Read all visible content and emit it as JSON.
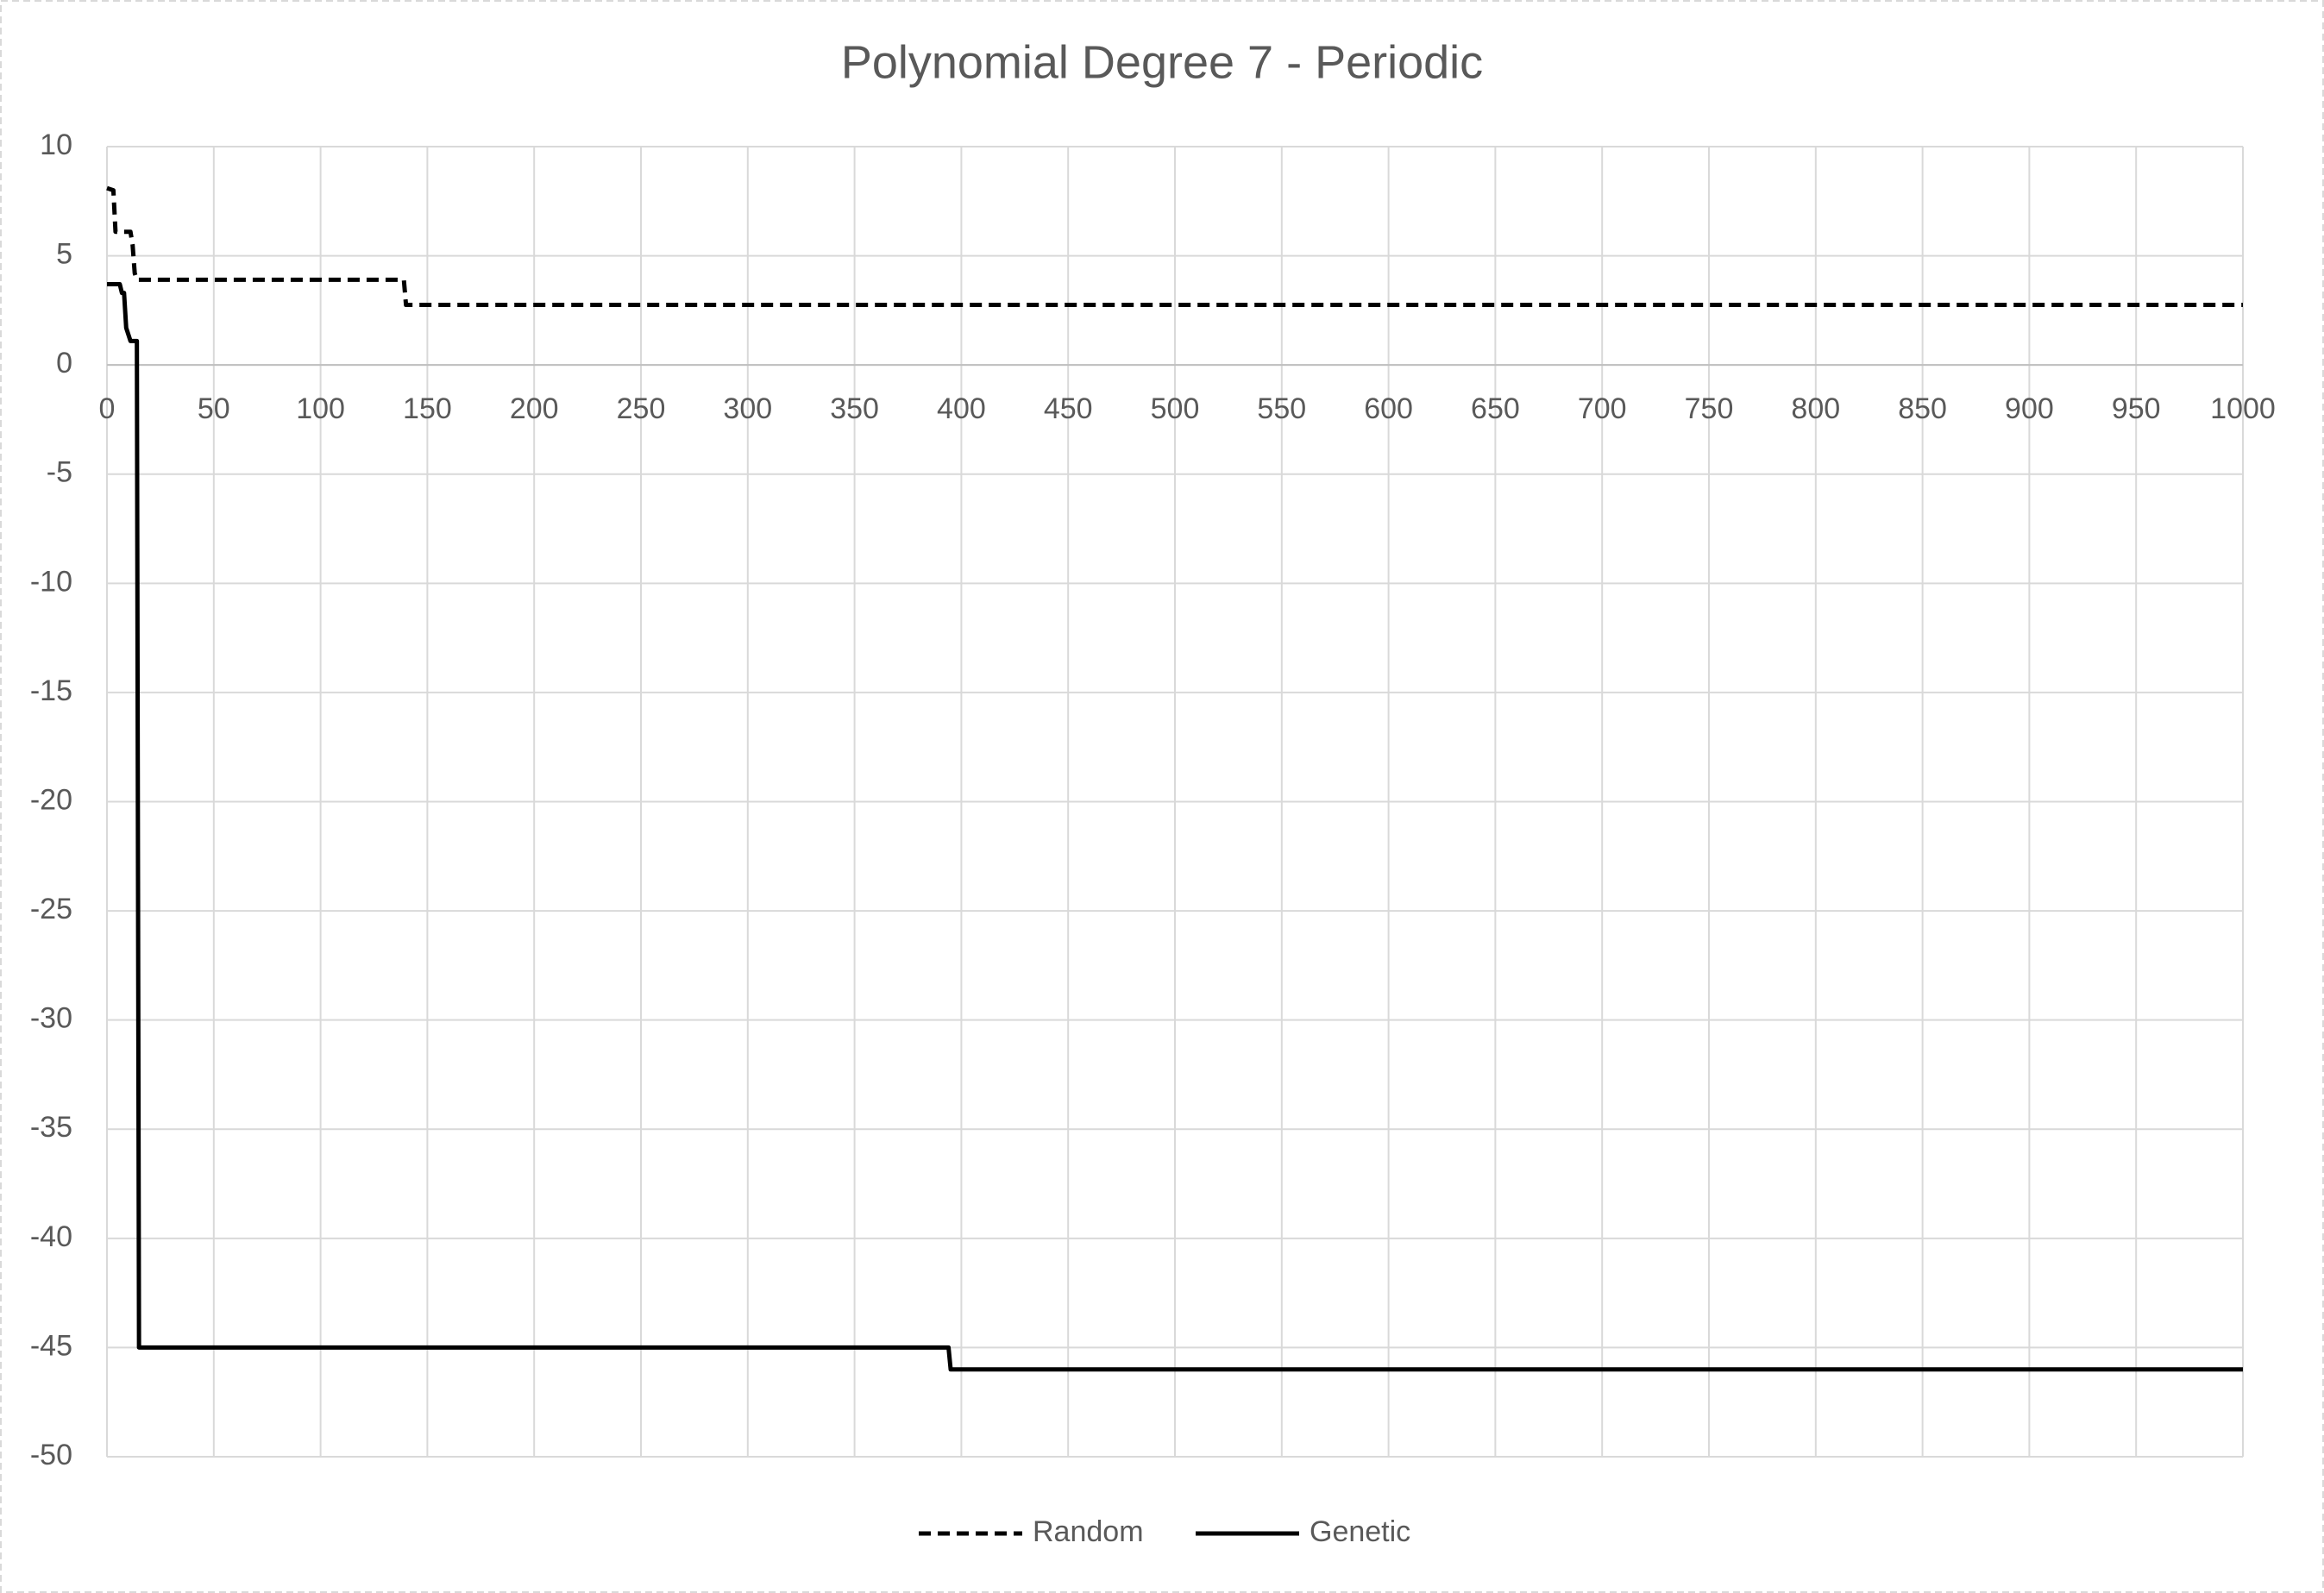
{
  "chart_data": {
    "type": "line",
    "title": "Polynomial Degree 7 - Periodic",
    "xlim": [
      0,
      1000
    ],
    "xticks": [
      0,
      50,
      100,
      150,
      200,
      250,
      300,
      350,
      400,
      450,
      500,
      550,
      600,
      650,
      700,
      750,
      800,
      850,
      900,
      950,
      1000
    ],
    "ylim": [
      -50,
      10
    ],
    "yticks": [
      -50,
      -45,
      -40,
      -35,
      -30,
      -25,
      -20,
      -15,
      -10,
      -5,
      0,
      5,
      10
    ],
    "grid": true,
    "legend": "bottom",
    "series": [
      {
        "name": "Random",
        "color": "#000000",
        "line_style": "dashed",
        "x": [
          0,
          3,
          4,
          11,
          12,
          13,
          14,
          139,
          140,
          1000
        ],
        "values": [
          8.1,
          8.0,
          6.1,
          6.1,
          5.5,
          4.2,
          3.9,
          3.9,
          2.75,
          2.75
        ]
      },
      {
        "name": "Genetic",
        "color": "#000000",
        "line_style": "solid",
        "x": [
          0,
          6,
          7,
          8,
          9,
          11,
          14,
          15,
          394,
          395,
          1000
        ],
        "values": [
          3.7,
          3.7,
          3.3,
          3.3,
          1.7,
          1.1,
          1.1,
          -45,
          -45,
          -46,
          -46
        ]
      }
    ]
  }
}
